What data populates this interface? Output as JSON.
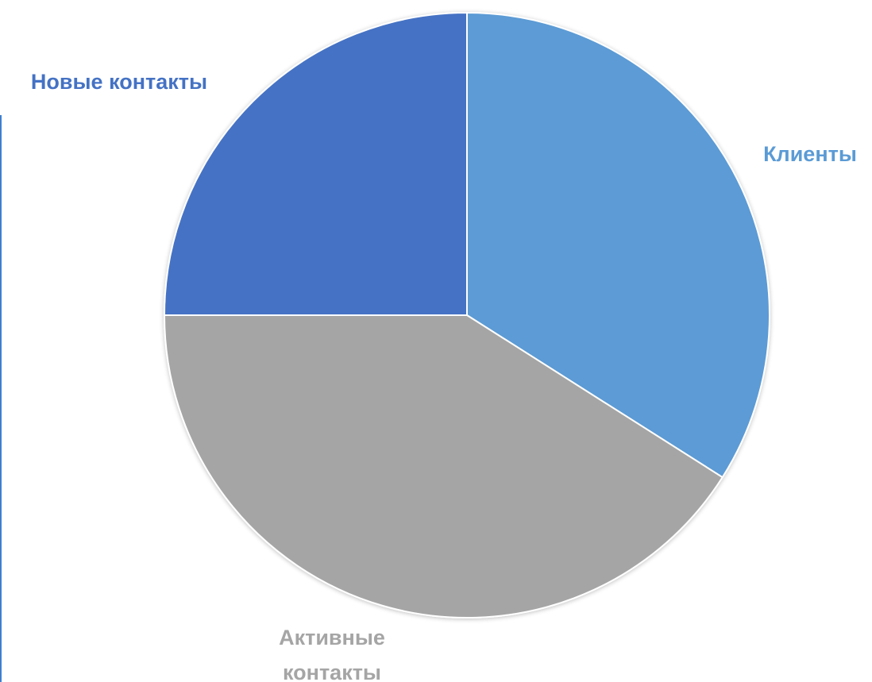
{
  "chart_data": {
    "type": "pie",
    "title": "",
    "start_angle_deg": 0,
    "direction": "clockwise",
    "legend": "none",
    "slices": [
      {
        "label": "Клиенты",
        "value": 34,
        "color": "#5b9bd5",
        "label_color": "#5b9bd5"
      },
      {
        "label": "Активные контакты",
        "label_lines": [
          "Активные",
          "контакты"
        ],
        "value": 41,
        "color": "#a5a5a5",
        "label_color": "#a5a5a5"
      },
      {
        "label": "Новые контакты",
        "value": 25,
        "color": "#4472c4",
        "label_color": "#4472c4"
      }
    ]
  }
}
